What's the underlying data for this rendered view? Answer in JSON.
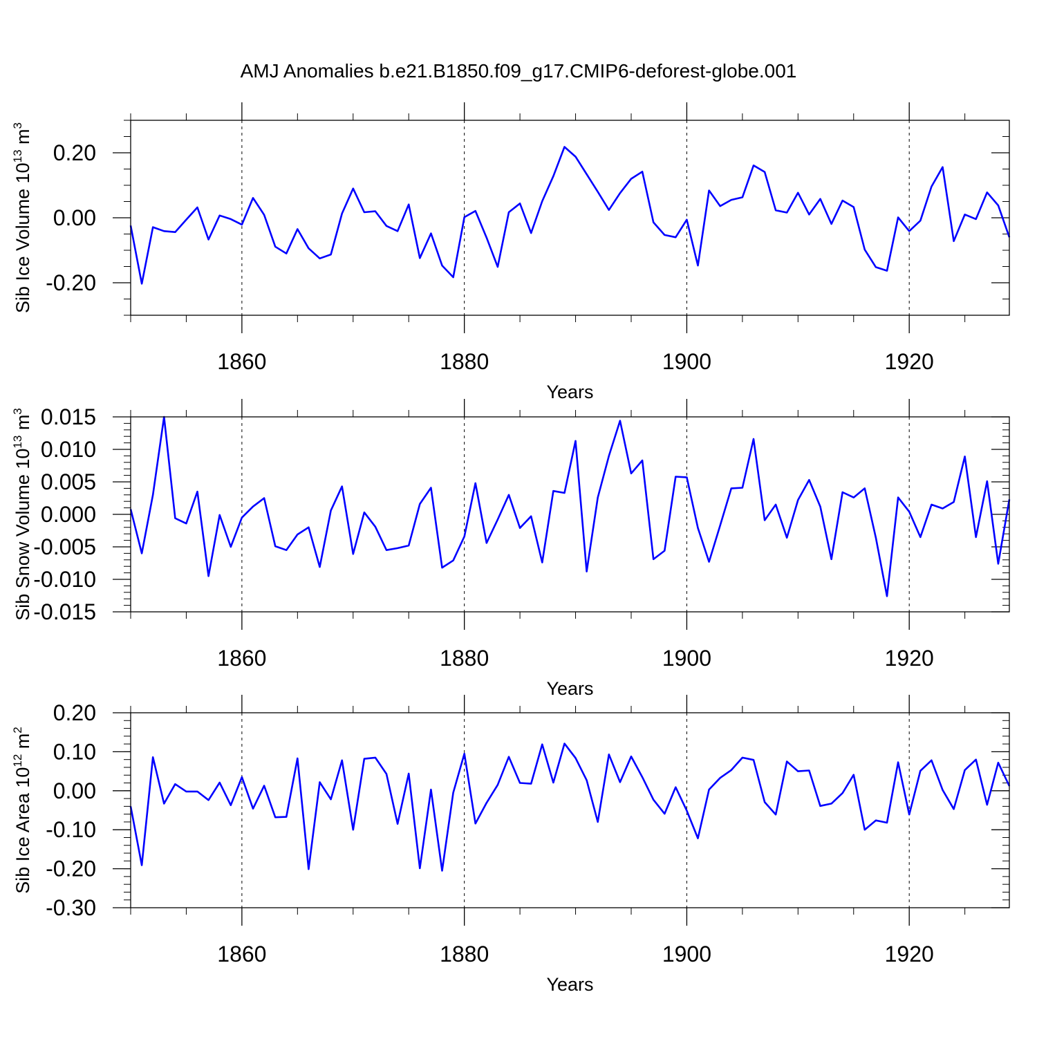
{
  "title": "AMJ Anomalies b.e21.B1850.f09_g17.CMIP6-deforest-globe.001",
  "colors": {
    "series": "#0000ff",
    "axis": "#000000",
    "grid": "#000000"
  },
  "chart_data": [
    {
      "type": "line",
      "xlabel": "Years",
      "ylabel": {
        "text": "Sib Ice Volume 10",
        "exp": "13",
        "unit": " m",
        "unit_exp": "3"
      },
      "xlim": [
        1850,
        1929
      ],
      "ylim": [
        -0.3,
        0.3
      ],
      "xticks": [
        1860,
        1880,
        1900,
        1920
      ],
      "xtick_labels": [
        "1860",
        "1880",
        "1900",
        "1920"
      ],
      "yticks": [
        -0.2,
        0.0,
        0.2
      ],
      "ytick_labels": [
        "-0.20",
        "0.00",
        "0.20"
      ],
      "yminor_step": 0.05,
      "grid": "vertical dashed at major x ticks",
      "series": [
        {
          "name": "Sib Ice Volume",
          "x_start": 1850,
          "values": [
            -0.024,
            -0.203,
            -0.029,
            -0.041,
            -0.044,
            -0.006,
            0.032,
            -0.067,
            0.007,
            -0.004,
            -0.021,
            0.061,
            0.009,
            -0.089,
            -0.11,
            -0.035,
            -0.094,
            -0.125,
            -0.113,
            0.013,
            0.09,
            0.017,
            0.02,
            -0.025,
            -0.041,
            0.041,
            -0.124,
            -0.048,
            -0.147,
            -0.183,
            0.002,
            0.021,
            -0.061,
            -0.151,
            0.017,
            0.044,
            -0.047,
            0.051,
            0.128,
            0.218,
            0.188,
            0.134,
            0.08,
            0.024,
            0.076,
            0.12,
            0.142,
            -0.014,
            -0.053,
            -0.06,
            -0.006,
            -0.147,
            0.084,
            0.036,
            0.055,
            0.063,
            0.161,
            0.141,
            0.023,
            0.016,
            0.077,
            0.01,
            0.058,
            -0.019,
            0.053,
            0.033,
            -0.098,
            -0.152,
            -0.163,
            0.001,
            -0.041,
            -0.009,
            0.096,
            0.156,
            -0.072,
            0.01,
            -0.004,
            0.078,
            0.038,
            -0.06
          ]
        }
      ]
    },
    {
      "type": "line",
      "xlabel": "Years",
      "ylabel": {
        "text": "Sib Snow Volume 10",
        "exp": "13",
        "unit": " m",
        "unit_exp": "3"
      },
      "xlim": [
        1850,
        1929
      ],
      "ylim": [
        -0.015,
        0.015
      ],
      "xticks": [
        1860,
        1880,
        1900,
        1920
      ],
      "xtick_labels": [
        "1860",
        "1880",
        "1900",
        "1920"
      ],
      "yticks": [
        -0.015,
        -0.01,
        -0.005,
        0.0,
        0.005,
        0.01,
        0.015
      ],
      "ytick_labels": [
        "-0.015",
        "-0.010",
        "-0.005",
        "0.000",
        "0.005",
        "0.010",
        "0.015"
      ],
      "yminor_step": 0.001,
      "grid": "vertical dashed at major x ticks",
      "series": [
        {
          "name": "Sib Snow Volume",
          "x_start": 1850,
          "values": [
            0.0008,
            -0.006,
            0.003,
            0.015,
            -0.0006,
            -0.0014,
            0.0035,
            -0.0095,
            -0.0001,
            -0.005,
            -0.0005,
            0.0012,
            0.0025,
            -0.0049,
            -0.0055,
            -0.0031,
            -0.002,
            -0.0081,
            0.0006,
            0.0043,
            -0.0061,
            0.0003,
            -0.0019,
            -0.0055,
            -0.0052,
            -0.0048,
            0.0016,
            0.0041,
            -0.0082,
            -0.0071,
            -0.0034,
            0.0048,
            -0.0044,
            -0.0008,
            0.003,
            -0.0021,
            -0.0003,
            -0.0074,
            0.0036,
            0.0033,
            0.0113,
            -0.0088,
            0.0026,
            0.009,
            0.0144,
            0.0063,
            0.0083,
            -0.0069,
            -0.0056,
            0.0058,
            0.0057,
            -0.0021,
            -0.0073,
            -0.0017,
            0.004,
            0.0041,
            0.0116,
            -0.0009,
            0.0015,
            -0.0036,
            0.0022,
            0.0053,
            0.0012,
            -0.0069,
            0.0034,
            0.0026,
            0.004,
            -0.0036,
            -0.0126,
            0.0026,
            0.0004,
            -0.0035,
            0.0015,
            0.0009,
            0.0019,
            0.0089,
            -0.0035,
            0.0051,
            -0.0076,
            0.0023
          ]
        }
      ]
    },
    {
      "type": "line",
      "xlabel": "Years",
      "ylabel": {
        "text": "Sib Ice Area 10",
        "exp": "12",
        "unit": " m",
        "unit_exp": "2"
      },
      "xlim": [
        1850,
        1929
      ],
      "ylim": [
        -0.3,
        0.2
      ],
      "xticks": [
        1860,
        1880,
        1900,
        1920
      ],
      "xtick_labels": [
        "1860",
        "1880",
        "1900",
        "1920"
      ],
      "yticks": [
        -0.3,
        -0.2,
        -0.1,
        0.0,
        0.1,
        0.2
      ],
      "ytick_labels": [
        "-0.30",
        "-0.20",
        "-0.10",
        "0.00",
        "0.10",
        "0.20"
      ],
      "yminor_step": 0.02,
      "grid": "vertical dashed at major x ticks",
      "series": [
        {
          "name": "Sib Ice Area",
          "x_start": 1850,
          "values": [
            -0.04,
            -0.191,
            0.086,
            -0.033,
            0.017,
            -0.002,
            -0.002,
            -0.024,
            0.021,
            -0.037,
            0.035,
            -0.046,
            0.013,
            -0.068,
            -0.067,
            0.083,
            -0.201,
            0.022,
            -0.022,
            0.078,
            -0.1,
            0.082,
            0.085,
            0.043,
            -0.085,
            0.044,
            -0.199,
            0.003,
            -0.205,
            -0.005,
            0.095,
            -0.084,
            -0.031,
            0.015,
            0.087,
            0.02,
            0.018,
            0.119,
            0.021,
            0.121,
            0.084,
            0.027,
            -0.08,
            0.093,
            0.022,
            0.088,
            0.035,
            -0.023,
            -0.059,
            0.009,
            -0.051,
            -0.122,
            0.003,
            0.033,
            0.053,
            0.085,
            0.079,
            -0.029,
            -0.061,
            0.075,
            0.05,
            0.052,
            -0.039,
            -0.033,
            -0.006,
            0.041,
            -0.1,
            -0.076,
            -0.082,
            0.073,
            -0.061,
            0.051,
            0.078,
            0.002,
            -0.047,
            0.053,
            0.08,
            -0.036,
            0.072,
            0.012
          ]
        }
      ]
    }
  ]
}
